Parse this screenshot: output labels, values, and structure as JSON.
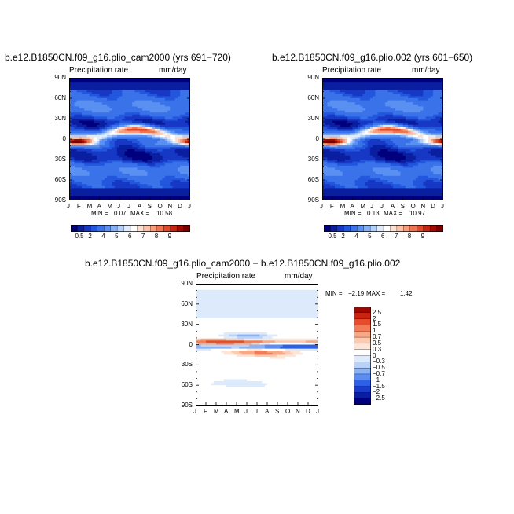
{
  "colors": {
    "scale_precip": [
      "#00007f",
      "#0a1ea0",
      "#1638c4",
      "#2256dc",
      "#3a72ea",
      "#5a90f2",
      "#86b0f6",
      "#b4d0fa",
      "#e0ecfc",
      "#ffffff",
      "#fde0d2",
      "#fcc0a6",
      "#f89c7c",
      "#f07452",
      "#e04a2a",
      "#c42610",
      "#a00a00",
      "#7a0000"
    ],
    "scale_diff": [
      "#00007f",
      "#0a1ea0",
      "#1a3cc8",
      "#2e60e6",
      "#5a8cf2",
      "#8cb2f6",
      "#b8d2fa",
      "#dceafc",
      "#ffffff",
      "#fde6d8",
      "#fccab0",
      "#f8a884",
      "#f27c58",
      "#e44c2c",
      "#c82410",
      "#9c0800"
    ]
  },
  "chart_data": [
    {
      "type": "heatmap",
      "title": "b.e12.B1850CN.f09_g16.plio_cam2000 (yrs 691−720)",
      "variable": "Precipitation rate",
      "units": "mm/day",
      "x_ticks": [
        "J",
        "F",
        "M",
        "A",
        "M",
        "J",
        "J",
        "A",
        "S",
        "O",
        "N",
        "D",
        "J"
      ],
      "y_ticks": [
        "90N",
        "60N",
        "30N",
        "0",
        "30S",
        "60S",
        "90S"
      ],
      "ylim": [
        -90,
        90
      ],
      "min_label": "MIN =",
      "min": "0.07",
      "max_label": "MAX =",
      "max": "10.58",
      "colorbar_levels": [
        "0.5",
        "2",
        "4",
        "5",
        "6",
        "7",
        "8",
        "9"
      ]
    },
    {
      "type": "heatmap",
      "title": "b.e12.B1850CN.f09_g16.plio.002 (yrs 601−650)",
      "variable": "Precipitation rate",
      "units": "mm/day",
      "x_ticks": [
        "J",
        "F",
        "M",
        "A",
        "M",
        "J",
        "J",
        "A",
        "S",
        "O",
        "N",
        "D",
        "J"
      ],
      "y_ticks": [
        "90N",
        "60N",
        "30N",
        "0",
        "30S",
        "60S",
        "90S"
      ],
      "ylim": [
        -90,
        90
      ],
      "min_label": "MIN =",
      "min": "0.13",
      "max_label": "MAX =",
      "max": "10.97",
      "colorbar_levels": [
        "0.5",
        "2",
        "4",
        "5",
        "6",
        "7",
        "8",
        "9"
      ]
    },
    {
      "type": "heatmap",
      "title": "b.e12.B1850CN.f09_g16.plio_cam2000 − b.e12.B1850CN.f09_g16.plio.002",
      "variable": "Precipitation rate",
      "units": "mm/day",
      "x_ticks": [
        "J",
        "F",
        "M",
        "A",
        "M",
        "J",
        "J",
        "A",
        "S",
        "O",
        "N",
        "D",
        "J"
      ],
      "y_ticks": [
        "90N",
        "60N",
        "30N",
        "0",
        "30S",
        "60S",
        "90S"
      ],
      "ylim": [
        -90,
        90
      ],
      "min_label": "MIN =",
      "min": "−2.19",
      "max_label": "MAX =",
      "max": "1.42",
      "colorbar_levels": [
        "2.5",
        "2",
        "1.5",
        "1",
        "0.7",
        "0.5",
        "0.3",
        "0",
        "−0.3",
        "−0.5",
        "−0.7",
        "−1",
        "−1.5",
        "−2",
        "−2.5"
      ]
    }
  ]
}
